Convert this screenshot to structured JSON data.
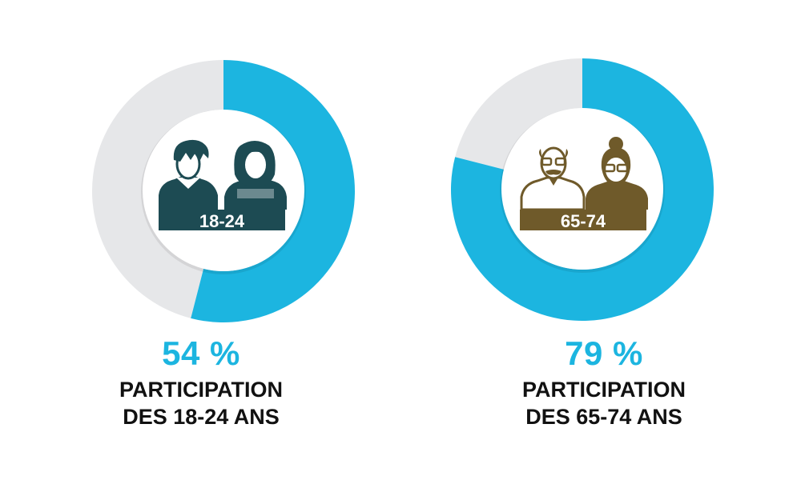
{
  "colors": {
    "accent": "#1cb5e0",
    "remainder": "#e6e7e9",
    "teal_icon": "#1d4b53",
    "brown_icon": "#6f5a2a"
  },
  "chart_data": [
    {
      "type": "pie",
      "value_label": "54 %",
      "values": [
        54,
        46
      ],
      "caption_line1": "PARTICIPATION",
      "caption_line2": "DES 18-24 ANS",
      "badge": "18-24",
      "icon": "young-people-icon"
    },
    {
      "type": "pie",
      "value_label": "79 %",
      "values": [
        79,
        21
      ],
      "caption_line1": "PARTICIPATION",
      "caption_line2": "DES 65-74 ANS",
      "badge": "65-74",
      "icon": "senior-people-icon"
    }
  ]
}
